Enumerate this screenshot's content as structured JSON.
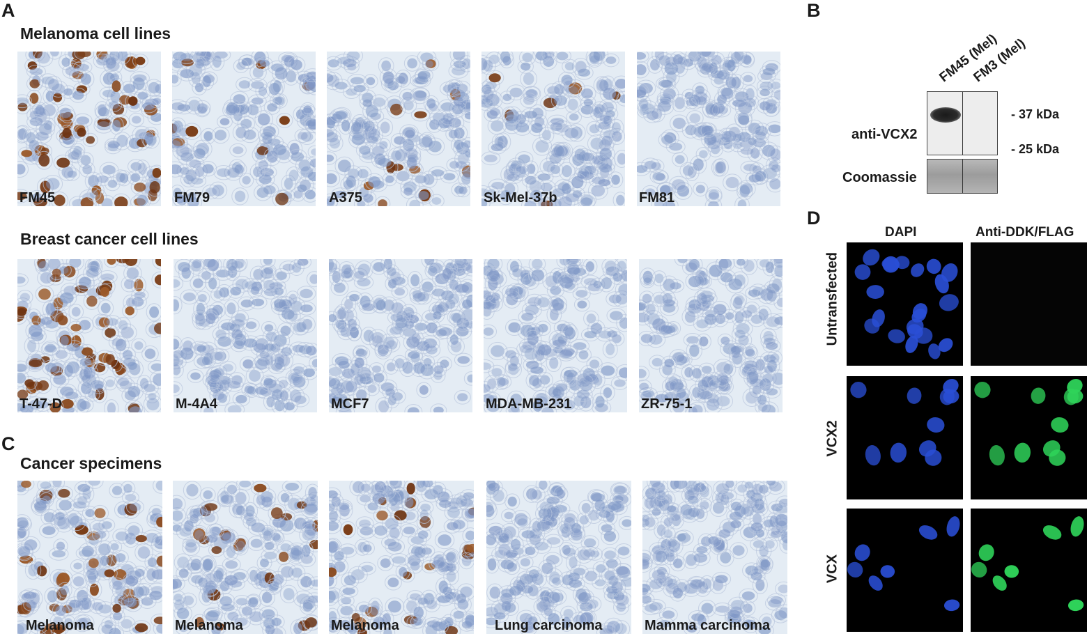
{
  "panels": {
    "a": "A",
    "b": "B",
    "c": "C",
    "d": "D"
  },
  "rows": {
    "melanoma": {
      "title": "Melanoma cell lines",
      "tiles": [
        {
          "label": "FM45",
          "stain": "strong"
        },
        {
          "label": "FM79",
          "stain": "weak"
        },
        {
          "label": "A375",
          "stain": "weak"
        },
        {
          "label": "Sk-Mel-37b",
          "stain": "weak"
        },
        {
          "label": "FM81",
          "stain": "none"
        }
      ]
    },
    "breast": {
      "title": "Breast cancer cell lines",
      "tiles": [
        {
          "label": "T-47-D",
          "stain": "strong"
        },
        {
          "label": "M-4A4",
          "stain": "none"
        },
        {
          "label": "MCF7",
          "stain": "none"
        },
        {
          "label": "MDA-MB-231",
          "stain": "none"
        },
        {
          "label": "ZR-75-1",
          "stain": "none"
        }
      ]
    },
    "specimens": {
      "title": "Cancer specimens",
      "tiles": [
        {
          "label": "Melanoma",
          "stain": "strong"
        },
        {
          "label": "Melanoma",
          "stain": "medium"
        },
        {
          "label": "Melanoma",
          "stain": "medium"
        },
        {
          "label": "Lung carcinoma",
          "stain": "none"
        },
        {
          "label": "Mamma carcinoma",
          "stain": "none"
        }
      ]
    }
  },
  "western_blot": {
    "lanes": [
      "FM45 (Mel)",
      "FM3 (Mel)"
    ],
    "antibody_label": "anti-VCX2",
    "loading_label": "Coomassie",
    "markers": [
      "- 37 kDa",
      "- 25 kDa"
    ]
  },
  "immunofluorescence": {
    "columns": [
      "DAPI",
      "Anti-DDK/FLAG"
    ],
    "rows": [
      {
        "label": "Untransfected",
        "dapi": "many",
        "flag": "none"
      },
      {
        "label": "VCX2",
        "dapi": "medium",
        "flag": "bright"
      },
      {
        "label": "VCX",
        "dapi": "sparse",
        "flag": "bright"
      }
    ]
  },
  "colors": {
    "hematoxylin": "#7f97c6",
    "dab_brown": "#7a3d17",
    "tissue_bg": "#e4ecf4",
    "dapi_blue": "#2a4fd6",
    "gfp_green": "#2fd45a"
  }
}
